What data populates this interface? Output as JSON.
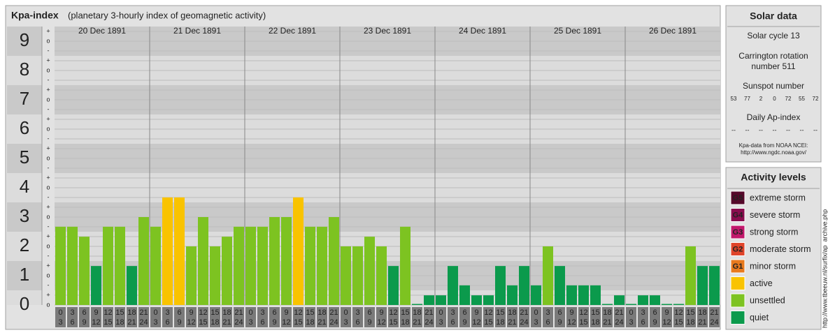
{
  "chart_data": {
    "type": "bar",
    "title": "Kpa-index",
    "subtitle": "(planetary 3-hourly index of geomagnetic activity)",
    "days": [
      "20 Dec 1891",
      "21 Dec 1891",
      "22 Dec 1891",
      "23 Dec 1891",
      "24 Dec 1891",
      "25 Dec 1891",
      "26 Dec 1891"
    ],
    "hours": [
      [
        "0",
        "3"
      ],
      [
        "3",
        "6"
      ],
      [
        "6",
        "9"
      ],
      [
        "9",
        "12"
      ],
      [
        "12",
        "15"
      ],
      [
        "15",
        "18"
      ],
      [
        "18",
        "21"
      ],
      [
        "21",
        "24"
      ]
    ],
    "values": [
      2.67,
      2.67,
      2.33,
      1.33,
      2.67,
      2.67,
      1.33,
      3,
      2.67,
      3.67,
      3.67,
      2,
      3,
      2,
      2.33,
      2.67,
      2.67,
      2.67,
      3,
      3,
      3.67,
      2.67,
      2.67,
      3,
      2,
      2,
      2.33,
      2,
      1.33,
      2.67,
      0,
      0.33,
      0.33,
      1.33,
      0.67,
      0.33,
      0.33,
      1.33,
      0.67,
      1.33,
      0.67,
      2,
      1.33,
      0.67,
      0.67,
      0.67,
      0,
      0.33,
      0,
      0.33,
      0.33,
      0,
      0,
      2,
      1.33,
      1.33
    ],
    "colors": [
      "#7dc321",
      "#7dc321",
      "#7dc321",
      "#0b9a4c",
      "#7dc321",
      "#7dc321",
      "#0b9a4c",
      "#7dc321",
      "#7dc321",
      "#f9c300",
      "#f9c300",
      "#7dc321",
      "#7dc321",
      "#7dc321",
      "#7dc321",
      "#7dc321",
      "#7dc321",
      "#7dc321",
      "#7dc321",
      "#7dc321",
      "#f9c300",
      "#7dc321",
      "#7dc321",
      "#7dc321",
      "#7dc321",
      "#7dc321",
      "#7dc321",
      "#7dc321",
      "#0b9a4c",
      "#7dc321",
      "#0b9a4c",
      "#0b9a4c",
      "#0b9a4c",
      "#0b9a4c",
      "#0b9a4c",
      "#0b9a4c",
      "#0b9a4c",
      "#0b9a4c",
      "#0b9a4c",
      "#0b9a4c",
      "#0b9a4c",
      "#7dc321",
      "#0b9a4c",
      "#0b9a4c",
      "#0b9a4c",
      "#0b9a4c",
      "#0b9a4c",
      "#0b9a4c",
      "#0b9a4c",
      "#0b9a4c",
      "#0b9a4c",
      "#0b9a4c",
      "#0b9a4c",
      "#7dc321",
      "#0b9a4c",
      "#0b9a4c"
    ],
    "ylim": [
      0,
      9.5
    ],
    "yticks": [
      0,
      1,
      2,
      3,
      4,
      5,
      6,
      7,
      8,
      9
    ],
    "minor_tick_labels": [
      "o",
      "+",
      "-"
    ]
  },
  "solar_data": {
    "title": "Solar data",
    "cycle": "Solar cycle 13",
    "carrington": [
      "Carrington rotation",
      "number 511"
    ],
    "sunspot_title": "Sunspot number",
    "sunspot_numbers": [
      53,
      77,
      2,
      0,
      72,
      55,
      72
    ],
    "ap_title": "Daily Ap-index",
    "ap_values": [
      "--",
      "--",
      "--",
      "--",
      "--",
      "--",
      "--"
    ],
    "source": [
      "Kpa-data from NOAA NCEI:",
      "http://www.ngdc.noaa.gov/"
    ]
  },
  "activity_levels": {
    "title": "Activity levels",
    "items": [
      {
        "badge": "G5",
        "name": "extreme storm",
        "color": "#55082a"
      },
      {
        "badge": "G4",
        "name": "severe storm",
        "color": "#8a0c4e"
      },
      {
        "badge": "G3",
        "name": "strong storm",
        "color": "#c2186c"
      },
      {
        "badge": "G2",
        "name": "moderate storm",
        "color": "#e0442a"
      },
      {
        "badge": "G1",
        "name": "minor storm",
        "color": "#e87a1e"
      },
      {
        "name": "active",
        "color": "#f9c300"
      },
      {
        "name": "unsettled",
        "color": "#7dc321"
      },
      {
        "name": "quiet",
        "color": "#0b9a4c"
      }
    ]
  },
  "credit": "http://www.tbeeuw.nl/surfix/ap_archive.php"
}
